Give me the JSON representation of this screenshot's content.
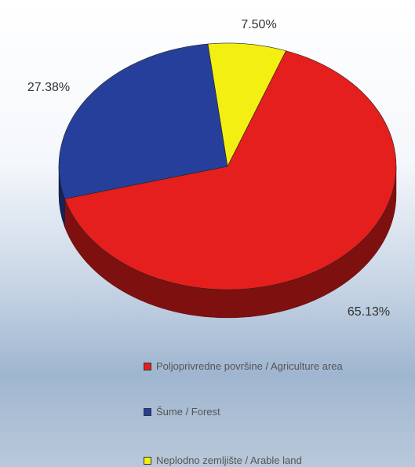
{
  "chart_data": {
    "type": "pie",
    "style": "3d",
    "categories": [
      "Poljoprivredne površine / Agriculture area",
      "Šume / Forest",
      "Neplodno zemljište / Arable land"
    ],
    "values": [
      65.13,
      27.38,
      7.5
    ],
    "value_labels": [
      "65.13%",
      "27.38%",
      "7.50%"
    ],
    "colors": [
      "#e51f1d",
      "#263f9b",
      "#f3ef12"
    ]
  }
}
